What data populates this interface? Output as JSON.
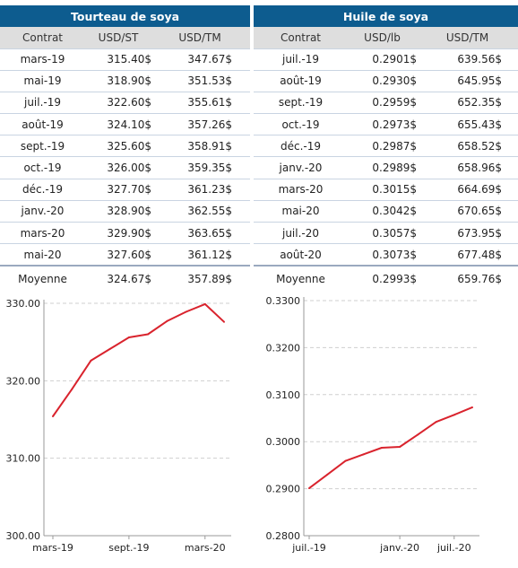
{
  "tables": {
    "left": {
      "title": "Tourteau de soya",
      "headers": [
        "Contrat",
        "USD/ST",
        "USD/TM"
      ],
      "rows": [
        [
          "mars-19",
          "315.40$",
          "347.67$"
        ],
        [
          "mai-19",
          "318.90$",
          "351.53$"
        ],
        [
          "juil.-19",
          "322.60$",
          "355.61$"
        ],
        [
          "août-19",
          "324.10$",
          "357.26$"
        ],
        [
          "sept.-19",
          "325.60$",
          "358.91$"
        ],
        [
          "oct.-19",
          "326.00$",
          "359.35$"
        ],
        [
          "déc.-19",
          "327.70$",
          "361.23$"
        ],
        [
          "janv.-20",
          "328.90$",
          "362.55$"
        ],
        [
          "mars-20",
          "329.90$",
          "363.65$"
        ],
        [
          "mai-20",
          "327.60$",
          "361.12$"
        ]
      ],
      "average": [
        "Moyenne",
        "324.67$",
        "357.89$"
      ]
    },
    "right": {
      "title": "Huile de soya",
      "headers": [
        "Contrat",
        "USD/lb",
        "USD/TM"
      ],
      "rows": [
        [
          "juil.-19",
          "0.2901$",
          "639.56$"
        ],
        [
          "août-19",
          "0.2930$",
          "645.95$"
        ],
        [
          "sept.-19",
          "0.2959$",
          "652.35$"
        ],
        [
          "oct.-19",
          "0.2973$",
          "655.43$"
        ],
        [
          "déc.-19",
          "0.2987$",
          "658.52$"
        ],
        [
          "janv.-20",
          "0.2989$",
          "658.96$"
        ],
        [
          "mars-20",
          "0.3015$",
          "664.69$"
        ],
        [
          "mai-20",
          "0.3042$",
          "670.65$"
        ],
        [
          "juil.-20",
          "0.3057$",
          "673.95$"
        ],
        [
          "août-20",
          "0.3073$",
          "677.48$"
        ]
      ],
      "average": [
        "Moyenne",
        "0.2993$",
        "659.76$"
      ]
    }
  },
  "colors": {
    "header_blue": "#0d5c8f",
    "subheader_gray": "#dedede",
    "line_red": "#d9232d",
    "grid": "#cfcfcf",
    "axis": "#9a9a9a"
  },
  "chart_data": [
    {
      "type": "line",
      "title": "",
      "x": [
        "mars-19",
        "mai-19",
        "juil.-19",
        "août-19",
        "sept.-19",
        "oct.-19",
        "déc.-19",
        "janv.-20",
        "mars-20",
        "mai-20"
      ],
      "series": [
        {
          "values": [
            315.4,
            318.9,
            322.6,
            324.1,
            325.6,
            326.0,
            327.7,
            328.9,
            329.9,
            327.6
          ]
        }
      ],
      "ylim": [
        300,
        330
      ],
      "yticks": [
        "330.00",
        "320.00",
        "310.00",
        "300.00"
      ],
      "ytick_values": [
        330,
        320,
        310,
        300
      ],
      "xticks": [
        "mars-19",
        "sept.-19",
        "mars-20"
      ],
      "xtick_indices": [
        0,
        4,
        8
      ],
      "grid": true
    },
    {
      "type": "line",
      "title": "",
      "x": [
        "juil.-19",
        "août-19",
        "sept.-19",
        "oct.-19",
        "déc.-19",
        "janv.-20",
        "mars-20",
        "mai-20",
        "juil.-20",
        "août-20"
      ],
      "series": [
        {
          "values": [
            0.2901,
            0.293,
            0.2959,
            0.2973,
            0.2987,
            0.2989,
            0.3015,
            0.3042,
            0.3057,
            0.3073
          ]
        }
      ],
      "ylim": [
        0.28,
        0.33
      ],
      "yticks": [
        "0.3300",
        "0.3200",
        "0.3100",
        "0.3000",
        "0.2900",
        "0.2800"
      ],
      "ytick_values": [
        0.33,
        0.32,
        0.31,
        0.3,
        0.29,
        0.28
      ],
      "xticks": [
        "juil.-19",
        "janv.-20",
        "juil.-20"
      ],
      "xtick_indices": [
        0,
        5,
        8
      ],
      "grid": true
    }
  ]
}
